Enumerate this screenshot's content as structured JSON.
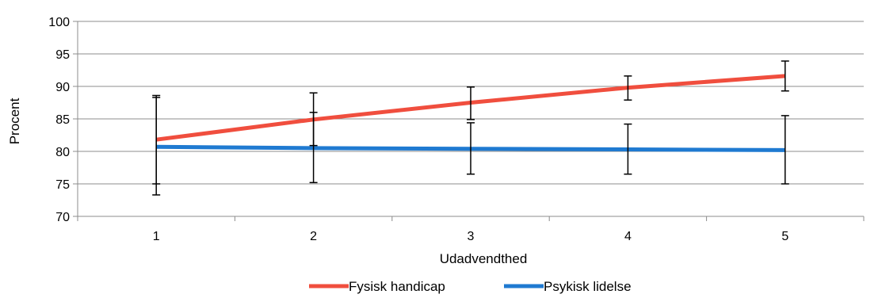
{
  "chart_data": {
    "type": "line",
    "categories": [
      "1",
      "2",
      "3",
      "4",
      "5"
    ],
    "x": [
      1,
      2,
      3,
      4,
      5
    ],
    "xlabel": "Udadvendthed",
    "ylabel": "Procent",
    "ylim": [
      70,
      100
    ],
    "yticks": [
      70,
      75,
      80,
      85,
      90,
      95,
      100
    ],
    "grid": true,
    "legend_position": "bottom",
    "series": [
      {
        "name": "Fysisk handicap",
        "color": "#f04e3e",
        "values": [
          81.8,
          84.9,
          87.5,
          89.8,
          91.6
        ],
        "error_low": [
          75.0,
          80.9,
          84.9,
          87.9,
          89.3
        ],
        "error_high": [
          88.6,
          89.0,
          89.9,
          91.6,
          93.9
        ]
      },
      {
        "name": "Psykisk lidelse",
        "color": "#1f7ad1",
        "values": [
          80.7,
          80.5,
          80.4,
          80.3,
          80.2
        ],
        "error_low": [
          73.3,
          75.2,
          76.5,
          76.5,
          75.0
        ],
        "error_high": [
          88.3,
          86.0,
          84.4,
          84.2,
          85.5
        ]
      }
    ]
  }
}
